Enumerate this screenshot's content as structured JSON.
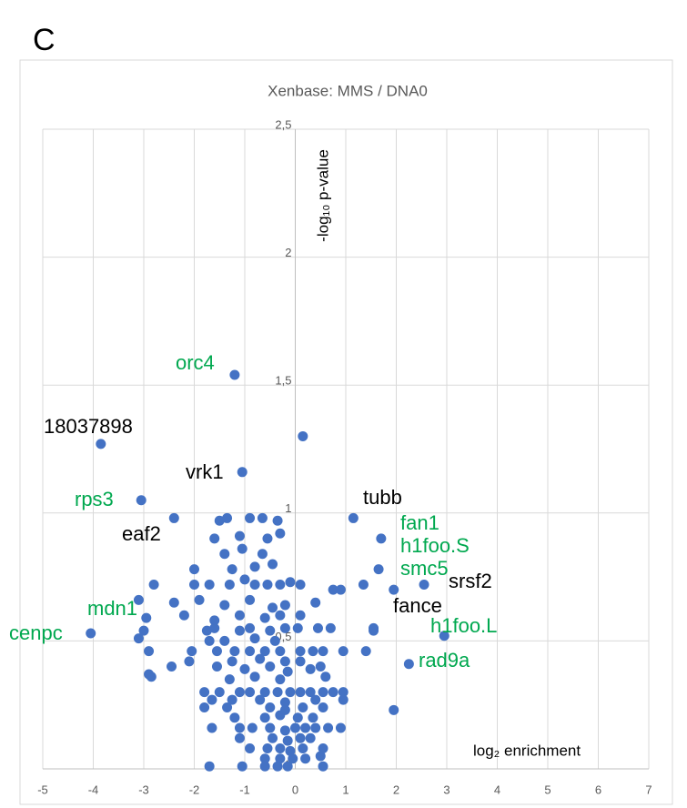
{
  "panel_label": "C",
  "chart_data": {
    "type": "scatter",
    "title": "Xenbase: MMS / DNA0",
    "x_label": "log₂ enrichment",
    "y_label": "-log₁₀ p-value",
    "xlim": [
      -5,
      7
    ],
    "ylim": [
      0,
      2.5
    ],
    "xticks": [
      -5,
      -4,
      -3,
      -2,
      -1,
      0,
      1,
      2,
      3,
      4,
      5,
      6,
      7
    ],
    "yticks": [
      0,
      {
        "value": 0.5,
        "label": "0,5"
      },
      1,
      {
        "value": 1.5,
        "label": "1,5"
      },
      2,
      {
        "value": 2.5,
        "label": "2,5"
      }
    ],
    "grid": true,
    "color": "#4472c4",
    "x": [
      0.15,
      -1.2,
      -1.05,
      -3.85,
      -3.05,
      -2.4,
      1.15,
      1.7,
      1.65,
      2.55,
      1.95,
      -4.05,
      2.95,
      2.25,
      1.95,
      -1.5,
      -1.35,
      -0.9,
      -0.65,
      -0.35,
      -1.6,
      -1.1,
      -0.55,
      -0.3,
      -1.4,
      -1.05,
      -0.65,
      -2.0,
      -1.25,
      -0.8,
      -0.45,
      -2.8,
      -2.0,
      -1.7,
      -1.3,
      -1.0,
      -0.8,
      -0.55,
      -0.3,
      -0.1,
      0.1,
      0.75,
      0.9,
      1.35,
      -3.1,
      -2.4,
      -1.9,
      -1.4,
      -0.9,
      -0.45,
      -0.2,
      0.4,
      -2.95,
      -2.2,
      -1.6,
      -1.1,
      -0.6,
      -0.3,
      0.1,
      -3.0,
      -1.75,
      -1.6,
      -1.1,
      -0.9,
      -0.5,
      -0.2,
      0.05,
      0.45,
      0.7,
      1.55,
      1.55,
      -3.1,
      -1.7,
      -1.4,
      -0.8,
      -0.4,
      -2.9,
      -2.05,
      -1.55,
      -1.2,
      -0.9,
      -0.6,
      -0.3,
      0.1,
      0.35,
      0.55,
      0.95,
      1.4,
      -2.1,
      -1.25,
      -0.7,
      -0.2,
      0.1,
      -2.45,
      -1.55,
      -1.0,
      -0.5,
      -0.15,
      0.3,
      0.5,
      -2.85,
      -2.9,
      -1.3,
      -0.8,
      -0.3,
      0.6,
      -1.8,
      -1.5,
      -1.1,
      -0.9,
      -0.6,
      -0.35,
      -0.1,
      0.1,
      0.3,
      0.55,
      0.75,
      0.95,
      -1.65,
      -1.25,
      -0.7,
      -0.2,
      0.4,
      0.95,
      -1.8,
      -1.35,
      -0.5,
      -0.2,
      0.15,
      0.55,
      -1.2,
      -0.6,
      -0.3,
      0.05,
      0.35,
      -1.65,
      -1.1,
      -0.85,
      -0.5,
      -0.2,
      0.0,
      0.2,
      0.4,
      0.65,
      0.9,
      -1.1,
      -0.45,
      -0.15,
      0.1,
      0.3,
      -0.9,
      -0.55,
      -0.3,
      -0.1,
      0.15,
      0.55,
      -0.6,
      -0.3,
      -0.05,
      0.2,
      0.5,
      -1.7,
      -1.05,
      -0.6,
      -0.35,
      -0.15,
      0.55
    ],
    "y": [
      1.3,
      1.54,
      1.16,
      1.27,
      1.05,
      0.98,
      0.98,
      0.9,
      0.78,
      0.72,
      0.7,
      0.53,
      0.52,
      0.41,
      0.23,
      0.97,
      0.98,
      0.98,
      0.98,
      0.97,
      0.9,
      0.91,
      0.9,
      0.92,
      0.84,
      0.86,
      0.84,
      0.78,
      0.78,
      0.79,
      0.8,
      0.72,
      0.72,
      0.72,
      0.72,
      0.74,
      0.72,
      0.72,
      0.72,
      0.73,
      0.72,
      0.7,
      0.7,
      0.72,
      0.66,
      0.65,
      0.66,
      0.64,
      0.66,
      0.63,
      0.64,
      0.65,
      0.59,
      0.6,
      0.58,
      0.6,
      0.59,
      0.6,
      0.6,
      0.54,
      0.54,
      0.55,
      0.54,
      0.55,
      0.54,
      0.55,
      0.55,
      0.55,
      0.55,
      0.55,
      0.54,
      0.51,
      0.5,
      0.5,
      0.51,
      0.5,
      0.46,
      0.46,
      0.46,
      0.46,
      0.46,
      0.46,
      0.46,
      0.46,
      0.46,
      0.46,
      0.46,
      0.46,
      0.42,
      0.42,
      0.43,
      0.42,
      0.42,
      0.4,
      0.4,
      0.39,
      0.4,
      0.38,
      0.39,
      0.4,
      0.36,
      0.37,
      0.35,
      0.36,
      0.35,
      0.36,
      0.3,
      0.3,
      0.3,
      0.3,
      0.3,
      0.3,
      0.3,
      0.3,
      0.3,
      0.3,
      0.3,
      0.3,
      0.27,
      0.27,
      0.27,
      0.26,
      0.27,
      0.27,
      0.24,
      0.24,
      0.24,
      0.23,
      0.24,
      0.24,
      0.2,
      0.2,
      0.21,
      0.2,
      0.2,
      0.16,
      0.16,
      0.16,
      0.16,
      0.15,
      0.16,
      0.16,
      0.16,
      0.16,
      0.16,
      0.12,
      0.12,
      0.11,
      0.12,
      0.12,
      0.08,
      0.08,
      0.08,
      0.07,
      0.08,
      0.08,
      0.04,
      0.04,
      0.04,
      0.04,
      0.05,
      0.01,
      0.01,
      0.01,
      0.01,
      0.01,
      0.01
    ],
    "annotations": [
      {
        "text": "orc4",
        "color": "#00a84f"
      },
      {
        "text": "18037898",
        "color": "#000000"
      },
      {
        "text": "vrk1",
        "color": "#000000"
      },
      {
        "text": "rps3",
        "color": "#00a84f"
      },
      {
        "text": "eaf2",
        "color": "#000000"
      },
      {
        "text": "tubb",
        "color": "#000000"
      },
      {
        "text": "fan1",
        "color": "#00a84f"
      },
      {
        "text": "h1foo.S",
        "color": "#00a84f"
      },
      {
        "text": "smc5",
        "color": "#00a84f"
      },
      {
        "text": "srsf2",
        "color": "#000000"
      },
      {
        "text": "fance",
        "color": "#000000"
      },
      {
        "text": "mdn1",
        "color": "#00a84f"
      },
      {
        "text": "cenpc",
        "color": "#00a84f"
      },
      {
        "text": "h1foo.L",
        "color": "#00a84f"
      },
      {
        "text": "rad9a",
        "color": "#00a84f"
      }
    ]
  }
}
